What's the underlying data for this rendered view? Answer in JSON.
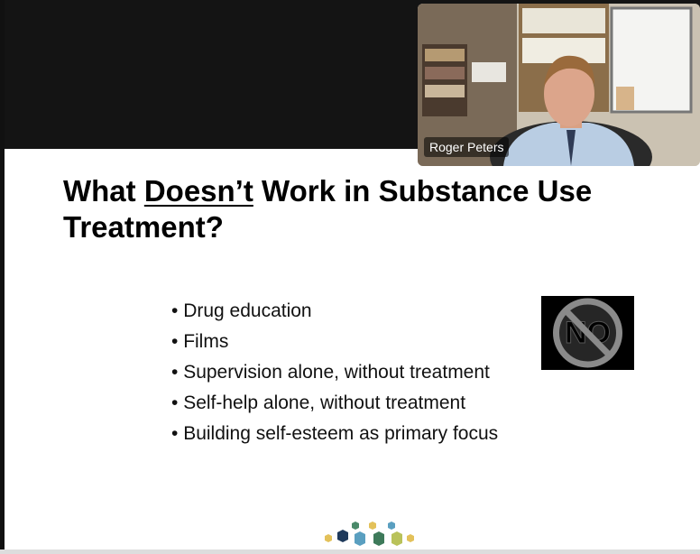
{
  "video": {
    "participant_name": "Roger Peters"
  },
  "slide": {
    "title_parts": [
      "What ",
      "Doesn’t",
      " Work in Substance Use Treatment?"
    ],
    "bullets": [
      "Drug education",
      "Films",
      "Supervision alone, without treatment",
      "Self-help alone, without treatment",
      "Building self-esteem as primary focus"
    ],
    "sign_text": "NO"
  }
}
